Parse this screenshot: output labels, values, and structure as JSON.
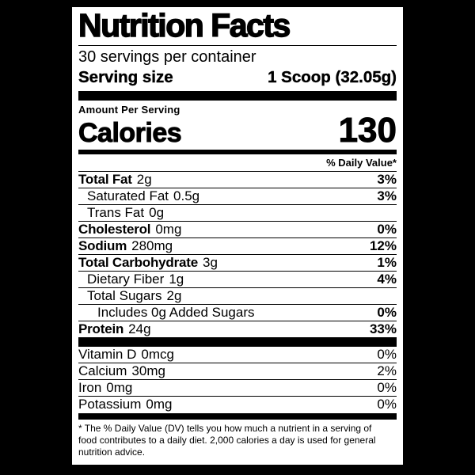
{
  "label": {
    "title": "Nutrition Facts",
    "servings_per_container": "30 servings per container",
    "serving_size": {
      "label": "Serving size",
      "value": "1 Scoop (32.05g)"
    },
    "amount_per_serving": "Amount Per Serving",
    "calories": {
      "label": "Calories",
      "value": "130"
    },
    "daily_value_header": "% Daily Value*",
    "nutrients": [
      {
        "name": "Total Fat",
        "amount": "2g",
        "dv": "3%",
        "bold": true,
        "indent": 0
      },
      {
        "name": "Saturated Fat",
        "amount": "0.5g",
        "dv": "3%",
        "bold": false,
        "indent": 1
      },
      {
        "name": "Trans Fat",
        "amount": "0g",
        "dv": "",
        "bold": false,
        "indent": 1
      },
      {
        "name": "Cholesterol",
        "amount": "0mg",
        "dv": "0%",
        "bold": true,
        "indent": 0
      },
      {
        "name": "Sodium",
        "amount": "280mg",
        "dv": "12%",
        "bold": true,
        "indent": 0
      },
      {
        "name": "Total Carbohydrate",
        "amount": "3g",
        "dv": "1%",
        "bold": true,
        "indent": 0
      },
      {
        "name": "Dietary Fiber",
        "amount": "1g",
        "dv": "4%",
        "bold": false,
        "indent": 1
      },
      {
        "name": "Total Sugars",
        "amount": "2g",
        "dv": "",
        "bold": false,
        "indent": 1
      },
      {
        "name": "Includes 0g Added Sugars",
        "amount": "",
        "dv": "0%",
        "bold": false,
        "indent": 2
      },
      {
        "name": "Protein",
        "amount": "24g",
        "dv": "33%",
        "bold": true,
        "indent": 0
      }
    ],
    "micronutrients": [
      {
        "name": "Vitamin D",
        "amount": "0mcg",
        "dv": "0%",
        "bold": false,
        "indent": 0
      },
      {
        "name": "Calcium",
        "amount": "30mg",
        "dv": "2%",
        "bold": false,
        "indent": 0
      },
      {
        "name": "Iron",
        "amount": "0mg",
        "dv": "0%",
        "bold": false,
        "indent": 0
      },
      {
        "name": "Potassium",
        "amount": "0mg",
        "dv": "0%",
        "bold": false,
        "indent": 0
      }
    ],
    "footnote": "* The % Daily Value (DV) tells you how much a nutrient in a serving of food contributes to a daily diet. 2,000 calories a day is used for general nutrition advice."
  },
  "colors": {
    "page_bg": "#000000",
    "label_bg": "#ffffff",
    "ink": "#000000"
  }
}
